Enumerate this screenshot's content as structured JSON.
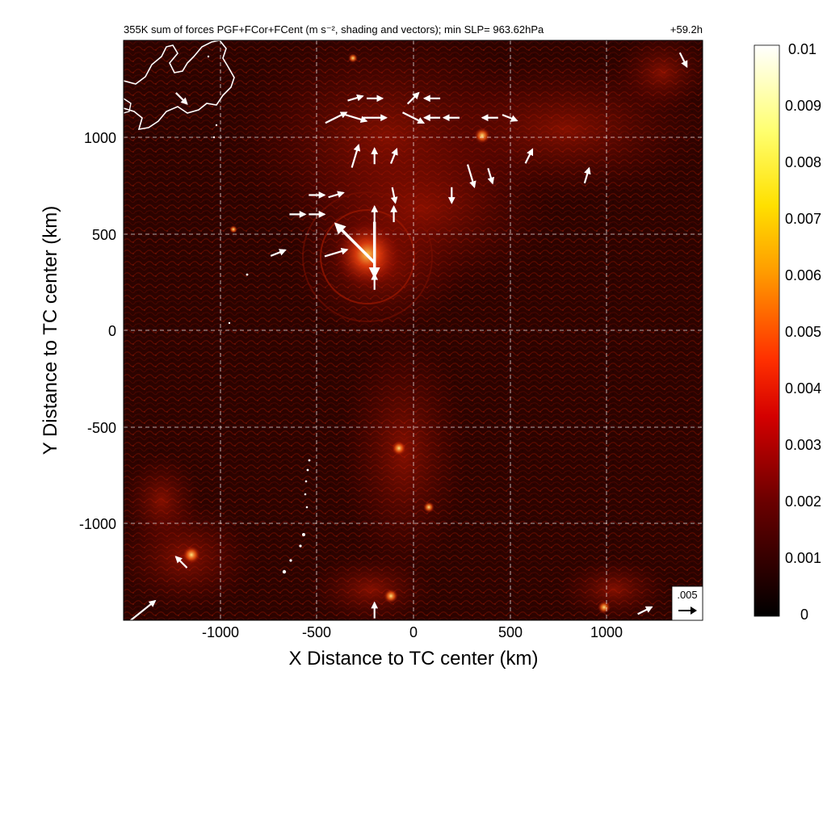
{
  "chart_data": {
    "type": "heatmap",
    "title": "355K sum of forces PGF+FCor+FCent (m s⁻², shading and vectors); min SLP= 963.62hPa",
    "time_label": "+59.2h",
    "xlabel": "X Distance to TC center (km)",
    "ylabel": "Y Distance to TC center (km)",
    "xlim": [
      -1500,
      1500
    ],
    "ylim": [
      -1500,
      1500
    ],
    "xticks": [
      -1000,
      -500,
      0,
      500,
      1000
    ],
    "xtick_labels": [
      "-1000",
      "-500",
      "0",
      "500",
      "1000"
    ],
    "yticks": [
      1000,
      500,
      0,
      -500,
      -1000
    ],
    "ytick_labels": [
      "1000",
      "500",
      "0",
      "-500",
      "-1000"
    ],
    "grid": true,
    "colorbar": {
      "min": 0,
      "max": 0.01,
      "ticks": [
        0.01,
        0.009,
        0.008,
        0.007,
        0.006,
        0.005,
        0.004,
        0.003,
        0.002,
        0.001,
        0
      ],
      "tick_labels": [
        "0.01",
        "0.009",
        "0.008",
        "0.007",
        "0.006",
        "0.005",
        "0.004",
        "0.003",
        "0.002",
        "0.001",
        "0"
      ],
      "colormap": "hot"
    },
    "reference_vector": {
      "label": ".005",
      "magnitude": 0.005
    },
    "vectors": [
      {
        "x": -400,
        "y": 1100,
        "u": 1,
        "v": 0.5,
        "m": 0.003
      },
      {
        "x": -300,
        "y": 1100,
        "u": 1,
        "v": -0.3,
        "m": 0.003
      },
      {
        "x": -200,
        "y": 1100,
        "u": 1,
        "v": 0,
        "m": 0.003
      },
      {
        "x": 0,
        "y": 1100,
        "u": 1,
        "v": -0.5,
        "m": 0.003
      },
      {
        "x": 100,
        "y": 1100,
        "u": -1,
        "v": 0,
        "m": 0.002
      },
      {
        "x": 200,
        "y": 1100,
        "u": -1,
        "v": 0,
        "m": 0.002
      },
      {
        "x": 400,
        "y": 1100,
        "u": -1,
        "v": 0,
        "m": 0.002
      },
      {
        "x": 500,
        "y": 1100,
        "u": 1,
        "v": -0.4,
        "m": 0.002
      },
      {
        "x": -300,
        "y": 1200,
        "u": 1,
        "v": 0.3,
        "m": 0.002
      },
      {
        "x": -200,
        "y": 1200,
        "u": 1,
        "v": 0,
        "m": 0.002
      },
      {
        "x": 0,
        "y": 1200,
        "u": 0.8,
        "v": 0.8,
        "m": 0.002
      },
      {
        "x": 100,
        "y": 1200,
        "u": -1,
        "v": 0,
        "m": 0.002
      },
      {
        "x": -300,
        "y": 900,
        "u": 0.3,
        "v": 1,
        "m": 0.003
      },
      {
        "x": -200,
        "y": 900,
        "u": 0,
        "v": 1,
        "m": 0.002
      },
      {
        "x": -100,
        "y": 900,
        "u": 0.4,
        "v": 1,
        "m": 0.002
      },
      {
        "x": 300,
        "y": 800,
        "u": 0.3,
        "v": -1,
        "m": 0.003
      },
      {
        "x": 400,
        "y": 800,
        "u": 0.3,
        "v": -1,
        "m": 0.002
      },
      {
        "x": -500,
        "y": 700,
        "u": 1,
        "v": 0,
        "m": 0.002
      },
      {
        "x": -400,
        "y": 700,
        "u": 1,
        "v": 0.3,
        "m": 0.002
      },
      {
        "x": -100,
        "y": 700,
        "u": 0.2,
        "v": -1,
        "m": 0.002
      },
      {
        "x": 200,
        "y": 700,
        "u": 0,
        "v": -1,
        "m": 0.002
      },
      {
        "x": -600,
        "y": 600,
        "u": 1,
        "v": 0,
        "m": 0.002
      },
      {
        "x": -500,
        "y": 600,
        "u": 1,
        "v": 0,
        "m": 0.002
      },
      {
        "x": -200,
        "y": 600,
        "u": 0,
        "v": 1,
        "m": 0.002
      },
      {
        "x": -100,
        "y": 600,
        "u": 0,
        "v": 1,
        "m": 0.002
      },
      {
        "x": -700,
        "y": 400,
        "u": 1,
        "v": 0.4,
        "m": 0.002
      },
      {
        "x": -400,
        "y": 400,
        "u": 1,
        "v": 0.3,
        "m": 0.003
      },
      {
        "x": -300,
        "y": 450,
        "u": -0.8,
        "v": 0.8,
        "m": 0.007
      },
      {
        "x": -200,
        "y": 420,
        "u": 0,
        "v": -1,
        "m": 0.007
      },
      {
        "x": -200,
        "y": 250,
        "u": 0,
        "v": 1,
        "m": 0.002
      },
      {
        "x": 600,
        "y": 900,
        "u": 0.5,
        "v": 1,
        "m": 0.002
      },
      {
        "x": 900,
        "y": 800,
        "u": 0.3,
        "v": 1,
        "m": 0.002
      },
      {
        "x": -1200,
        "y": -1200,
        "u": -0.8,
        "v": 0.8,
        "m": 0.002
      },
      {
        "x": -1400,
        "y": -1450,
        "u": 1,
        "v": 0.8,
        "m": 0.004
      },
      {
        "x": -200,
        "y": -1450,
        "u": 0,
        "v": 1,
        "m": 0.002
      },
      {
        "x": 1200,
        "y": -1450,
        "u": 1,
        "v": 0.5,
        "m": 0.002
      },
      {
        "x": 1400,
        "y": 1400,
        "u": 0.5,
        "v": -1,
        "m": 0.002
      },
      {
        "x": -1200,
        "y": 1200,
        "u": 0.8,
        "v": -0.8,
        "m": 0.002
      }
    ]
  }
}
